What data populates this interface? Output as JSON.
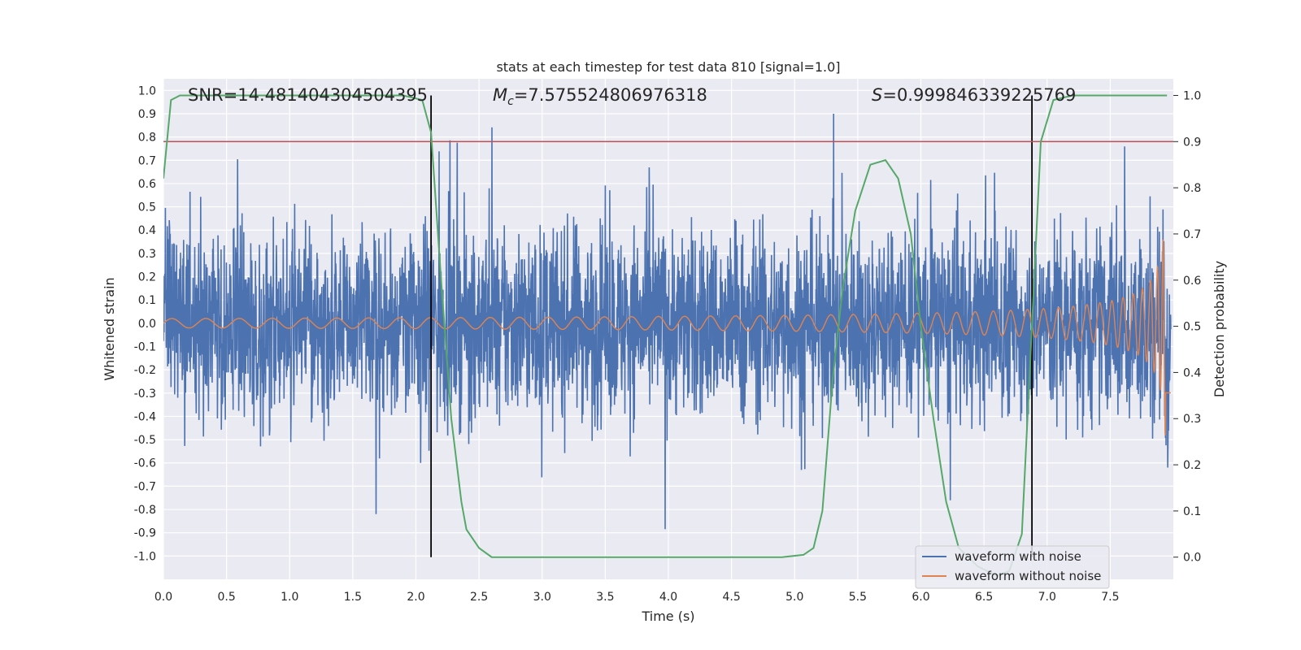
{
  "chart_data": {
    "type": "line",
    "title": "stats at each timestep for test data 810 [signal=1.0]",
    "xlabel": "Time (s)",
    "ylabel": "Whitened strain",
    "y2label": "Detection probability",
    "xlim": [
      0.0,
      8.0
    ],
    "ylim": [
      -1.1,
      1.05
    ],
    "y2lim": [
      -0.048,
      1.036
    ],
    "x_ticks": [
      "0.0",
      "0.5",
      "1.0",
      "1.5",
      "2.0",
      "2.5",
      "3.0",
      "3.5",
      "4.0",
      "4.5",
      "5.0",
      "5.5",
      "6.0",
      "6.5",
      "7.0",
      "7.5"
    ],
    "y_ticks": [
      "1.0",
      "0.9",
      "0.8",
      "0.7",
      "0.6",
      "0.5",
      "0.4",
      "0.3",
      "0.2",
      "0.1",
      "0.0",
      "-0.1",
      "-0.2",
      "-0.3",
      "-0.4",
      "-0.5",
      "-0.6",
      "-0.7",
      "-0.8",
      "-0.9",
      "-1.0"
    ],
    "y2_ticks": [
      "1.0",
      "0.9",
      "0.8",
      "0.7",
      "0.6",
      "0.5",
      "0.4",
      "0.3",
      "0.2",
      "0.1",
      "0.0"
    ],
    "annotations": {
      "snr": "SNR=14.481404304504395",
      "mc_symbol": "M",
      "mc_sub": "c",
      "mc_value": "=7.575524806976318",
      "s_symbol": "S",
      "s_value": "=0.999846339225769"
    },
    "threshold_line": {
      "axis": "right",
      "value": 0.9,
      "color": "#c44e52"
    },
    "vertical_markers": [
      2.12,
      6.88
    ],
    "detection_probability": {
      "name": "Detection probability",
      "color": "#55a868",
      "x": [
        0.0,
        0.06,
        0.13,
        0.2,
        0.5,
        1.0,
        1.5,
        1.9,
        2.05,
        2.12,
        2.2,
        2.28,
        2.36,
        2.4,
        2.5,
        2.6,
        3.0,
        3.5,
        4.0,
        4.5,
        4.9,
        5.07,
        5.15,
        5.22,
        5.3,
        5.38,
        5.48,
        5.6,
        5.72,
        5.82,
        5.92,
        6.0,
        6.1,
        6.2,
        6.3,
        6.45,
        6.6,
        6.7,
        6.8,
        6.88,
        6.95,
        7.05,
        7.2,
        7.5,
        7.95
      ],
      "y": [
        0.82,
        0.99,
        1.0,
        1.0,
        1.0,
        1.0,
        1.0,
        1.0,
        0.99,
        0.92,
        0.6,
        0.3,
        0.12,
        0.06,
        0.02,
        0.0,
        0.0,
        0.0,
        0.0,
        0.0,
        0.0,
        0.005,
        0.02,
        0.1,
        0.38,
        0.58,
        0.75,
        0.85,
        0.86,
        0.82,
        0.7,
        0.5,
        0.3,
        0.12,
        0.02,
        -0.02,
        -0.04,
        -0.03,
        0.05,
        0.5,
        0.9,
        0.99,
        1.0,
        1.0,
        1.0
      ]
    },
    "series": [
      {
        "name": "waveform with noise",
        "color": "#4c72b0",
        "noise_sigma": 0.2,
        "peak_range": [
          -1.0,
          0.9
        ]
      },
      {
        "name": "waveform without noise",
        "color": "#dd8452",
        "start_amplitude": 0.02,
        "end_amplitude": 0.55,
        "merger_time": 7.96
      }
    ],
    "legend": {
      "placement": "lower-right",
      "entries": [
        "waveform with noise",
        "waveform without noise"
      ]
    }
  }
}
